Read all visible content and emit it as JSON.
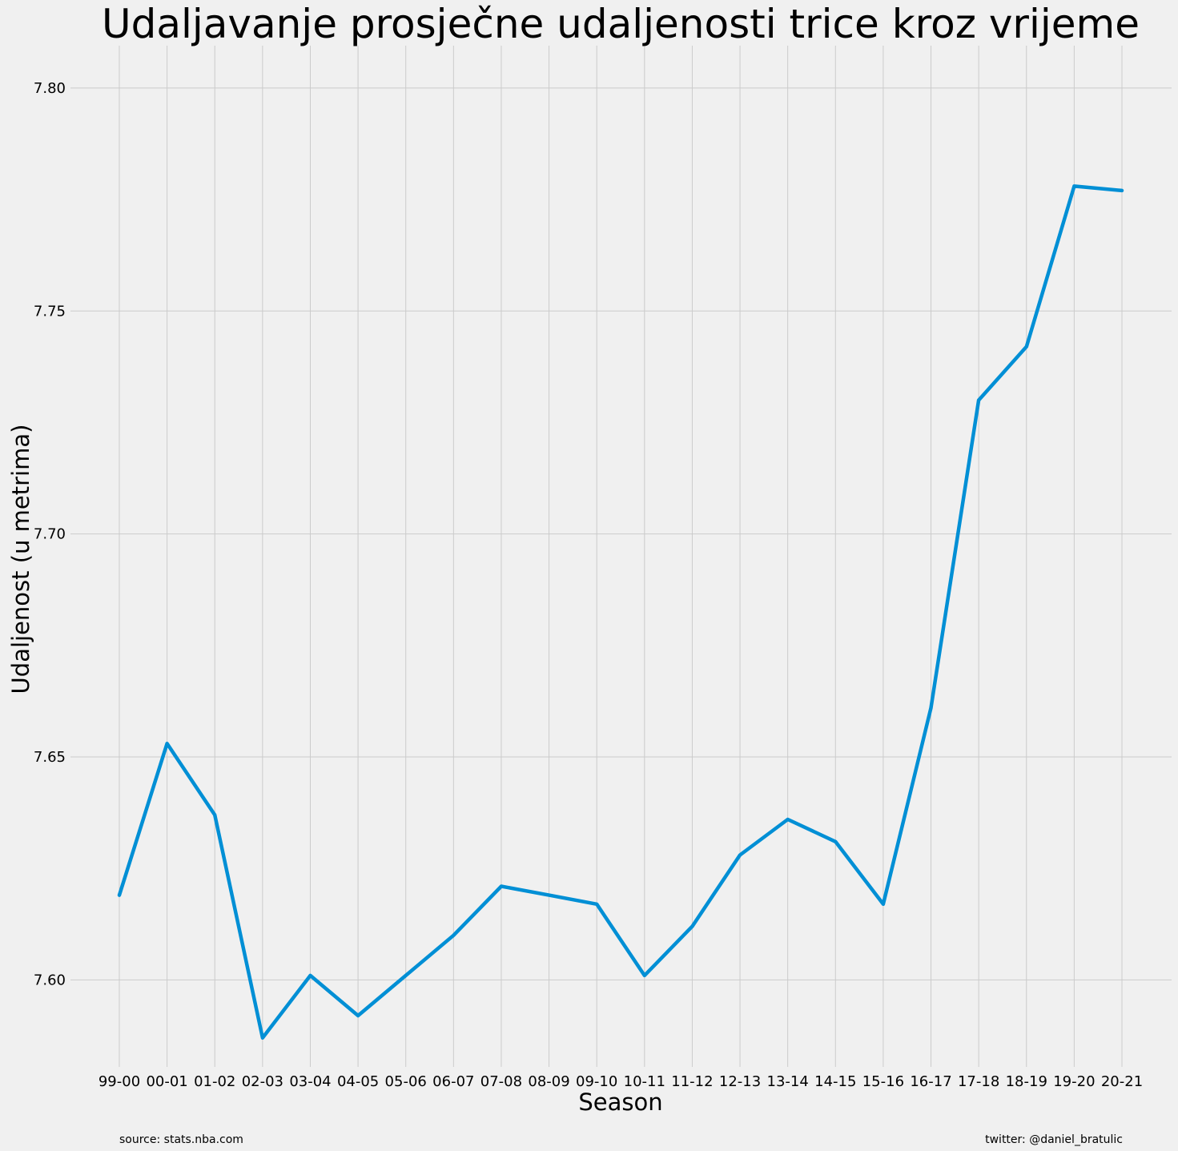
{
  "chart_data": {
    "type": "line",
    "title": "Udaljavanje prosječne udaljenosti trice kroz vrijeme",
    "xlabel": "Season",
    "ylabel": "Udaljenost (u metrima)",
    "categories": [
      "99-00",
      "00-01",
      "01-02",
      "02-03",
      "03-04",
      "04-05",
      "05-06",
      "06-07",
      "07-08",
      "08-09",
      "09-10",
      "10-11",
      "11-12",
      "12-13",
      "13-14",
      "14-15",
      "15-16",
      "16-17",
      "17-18",
      "18-19",
      "19-20",
      "20-21"
    ],
    "yticks": [
      "7.60",
      "7.65",
      "7.70",
      "7.75",
      "7.80"
    ],
    "ylim": [
      7.5805,
      7.8095
    ],
    "grid": true,
    "series": [
      {
        "values": [
          7.619,
          7.653,
          7.637,
          7.587,
          7.601,
          7.592,
          7.601,
          7.61,
          7.621,
          7.619,
          7.617,
          7.601,
          7.612,
          7.628,
          7.636,
          7.631,
          7.617,
          7.661,
          7.73,
          7.742,
          7.778,
          7.777
        ],
        "color": "#008fd5"
      }
    ]
  },
  "footer": {
    "source": "source: stats.nba.com",
    "credit": "twitter: @daniel_bratulic"
  }
}
